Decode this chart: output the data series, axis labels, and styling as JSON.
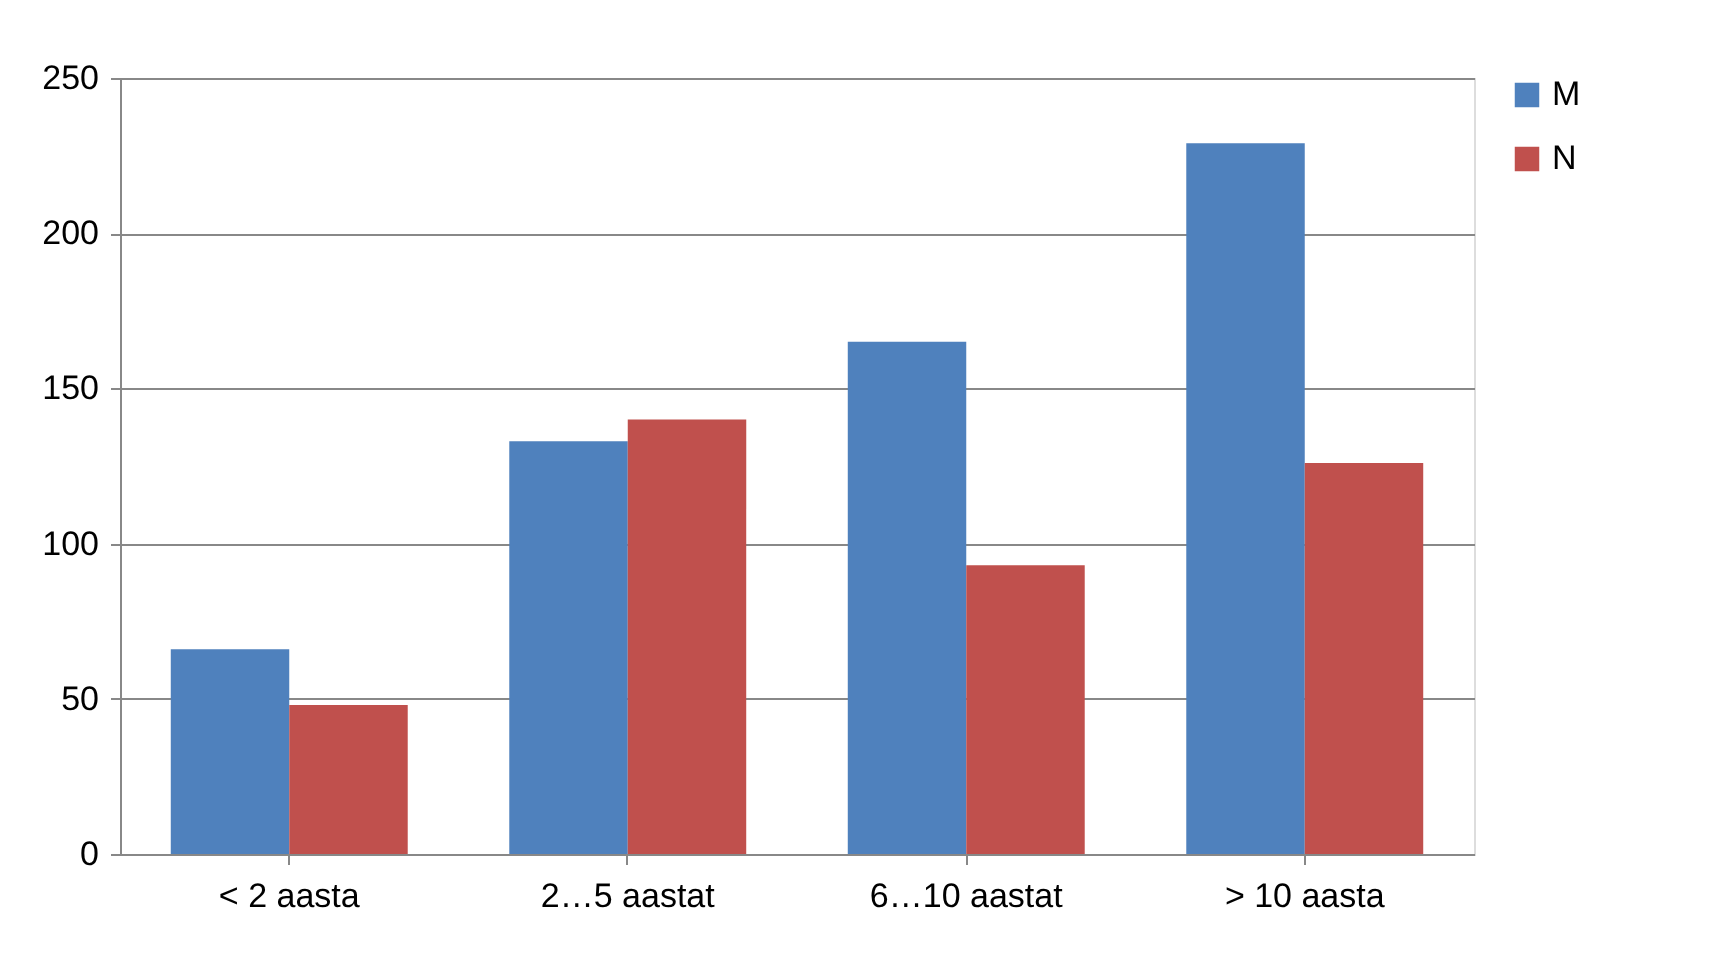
{
  "chart_data": {
    "type": "bar",
    "categories": [
      "< 2 aasta",
      "2…5 aastat",
      "6…10 aastat",
      "> 10 aasta"
    ],
    "series": [
      {
        "name": "M",
        "color": "#4f81bd",
        "values": [
          66,
          133,
          165,
          229
        ]
      },
      {
        "name": "N",
        "color": "#c0504d",
        "values": [
          48,
          140,
          93,
          126
        ]
      }
    ],
    "ylim": [
      0,
      250
    ],
    "yticks": [
      0,
      50,
      100,
      150,
      200,
      250
    ],
    "grid": "y",
    "legend": "right"
  }
}
